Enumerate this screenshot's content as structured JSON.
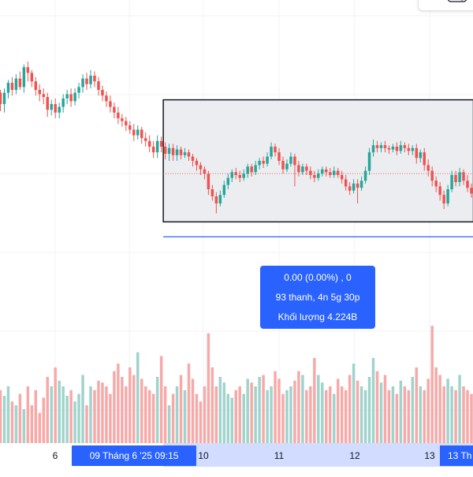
{
  "colors": {
    "up": "#26a69a",
    "down": "#ef5350",
    "up_volume": "#9fd3cc",
    "down_volume": "#f7a9a8",
    "selection_fill": "#ebedf0",
    "selection_border": "#131722",
    "range_highlight": "#2962ff",
    "axis_highlight_bg": "#d1dcff",
    "grid": "#f0f3fa",
    "price_line": "#ef5350"
  },
  "x_axis": {
    "ticks": [
      "6",
      "10",
      "11",
      "12",
      "13"
    ],
    "range_start_label": "09 Tháng 6 '25   09:15",
    "range_end_label": "13 Th"
  },
  "measure_tooltip": {
    "change": "0.00 (0.00%) , 0",
    "bars_duration": "93 thanh, 4n 5g 30p",
    "volume": "Khối lượng 4.224B"
  },
  "toolbar": {
    "icon": "toggle-icon"
  },
  "chart_data": {
    "type": "candlestick",
    "candles": [
      [
        118,
        110,
        105,
        120
      ],
      [
        110,
        118,
        104,
        121
      ],
      [
        118,
        125,
        114,
        127
      ],
      [
        125,
        120,
        116,
        129
      ],
      [
        120,
        128,
        117,
        131
      ],
      [
        128,
        122,
        120,
        133
      ],
      [
        122,
        136,
        118,
        138
      ],
      [
        136,
        132,
        126,
        140
      ],
      [
        132,
        126,
        122,
        134
      ],
      [
        126,
        120,
        116,
        129
      ],
      [
        120,
        117,
        112,
        124
      ],
      [
        117,
        115,
        110,
        121
      ],
      [
        115,
        106,
        101,
        118
      ],
      [
        106,
        110,
        102,
        113
      ],
      [
        110,
        104,
        100,
        114
      ],
      [
        104,
        108,
        100,
        111
      ],
      [
        108,
        114,
        104,
        117
      ],
      [
        114,
        117,
        110,
        120
      ],
      [
        117,
        112,
        108,
        121
      ],
      [
        112,
        118,
        109,
        121
      ],
      [
        118,
        122,
        114,
        125
      ],
      [
        122,
        128,
        118,
        131
      ],
      [
        128,
        124,
        120,
        132
      ],
      [
        124,
        130,
        121,
        134
      ],
      [
        130,
        126,
        122,
        133
      ],
      [
        126,
        120,
        116,
        129
      ],
      [
        120,
        116,
        112,
        123
      ],
      [
        116,
        112,
        108,
        119
      ],
      [
        112,
        108,
        104,
        116
      ],
      [
        108,
        104,
        100,
        111
      ],
      [
        104,
        100,
        96,
        108
      ],
      [
        100,
        98,
        94,
        103
      ],
      [
        98,
        95,
        91,
        101
      ],
      [
        95,
        92,
        89,
        98
      ],
      [
        92,
        88,
        84,
        96
      ],
      [
        88,
        92,
        85,
        95
      ],
      [
        92,
        86,
        82,
        94
      ],
      [
        86,
        84,
        80,
        90
      ],
      [
        84,
        80,
        76,
        88
      ],
      [
        80,
        76,
        72,
        84
      ],
      [
        76,
        84,
        72,
        88
      ],
      [
        84,
        80,
        76,
        87
      ],
      [
        80,
        75,
        71,
        83
      ],
      [
        75,
        79,
        70,
        82
      ],
      [
        79,
        74,
        70,
        82
      ],
      [
        74,
        78,
        70,
        81
      ],
      [
        78,
        74,
        71,
        80
      ],
      [
        74,
        76,
        72,
        79
      ],
      [
        76,
        73,
        70,
        78
      ],
      [
        73,
        70,
        66,
        75
      ],
      [
        70,
        67,
        63,
        72
      ],
      [
        67,
        64,
        60,
        69
      ],
      [
        64,
        61,
        57,
        66
      ],
      [
        61,
        50,
        46,
        63
      ],
      [
        50,
        45,
        42,
        53
      ],
      [
        45,
        40,
        33,
        48
      ],
      [
        40,
        46,
        38,
        49
      ],
      [
        46,
        53,
        44,
        56
      ],
      [
        53,
        58,
        50,
        61
      ],
      [
        58,
        62,
        55,
        64
      ],
      [
        62,
        60,
        57,
        65
      ],
      [
        60,
        58,
        55,
        63
      ],
      [
        58,
        61,
        56,
        64
      ],
      [
        61,
        66,
        58,
        68
      ],
      [
        66,
        62,
        59,
        68
      ],
      [
        62,
        67,
        60,
        70
      ],
      [
        67,
        70,
        64,
        72
      ],
      [
        70,
        68,
        65,
        73
      ],
      [
        68,
        73,
        66,
        76
      ],
      [
        73,
        80,
        71,
        83
      ],
      [
        80,
        76,
        73,
        82
      ],
      [
        76,
        70,
        67,
        79
      ],
      [
        70,
        64,
        61,
        73
      ],
      [
        64,
        68,
        62,
        71
      ],
      [
        68,
        73,
        66,
        76
      ],
      [
        73,
        67,
        52,
        75
      ],
      [
        67,
        62,
        59,
        70
      ],
      [
        62,
        66,
        60,
        68
      ],
      [
        66,
        63,
        60,
        68
      ],
      [
        63,
        60,
        57,
        66
      ],
      [
        60,
        58,
        55,
        63
      ],
      [
        58,
        61,
        56,
        64
      ],
      [
        61,
        64,
        59,
        66
      ],
      [
        64,
        62,
        59,
        66
      ],
      [
        62,
        60,
        58,
        65
      ],
      [
        60,
        63,
        58,
        66
      ],
      [
        63,
        60,
        58,
        65
      ],
      [
        60,
        57,
        54,
        63
      ],
      [
        57,
        52,
        49,
        60
      ],
      [
        52,
        49,
        46,
        55
      ],
      [
        49,
        54,
        47,
        57
      ],
      [
        54,
        51,
        40,
        57
      ],
      [
        51,
        56,
        49,
        59
      ],
      [
        56,
        63,
        54,
        66
      ],
      [
        63,
        76,
        60,
        79
      ],
      [
        76,
        81,
        73,
        85
      ],
      [
        81,
        79,
        76,
        84
      ],
      [
        79,
        81,
        76,
        83
      ],
      [
        81,
        79,
        76,
        84
      ],
      [
        79,
        78,
        75,
        81
      ],
      [
        78,
        80,
        76,
        82
      ],
      [
        80,
        77,
        74,
        83
      ],
      [
        77,
        81,
        75,
        84
      ],
      [
        81,
        79,
        76,
        83
      ],
      [
        79,
        77,
        74,
        82
      ],
      [
        77,
        79,
        74,
        81
      ],
      [
        79,
        72,
        68,
        82
      ],
      [
        72,
        76,
        69,
        78
      ],
      [
        76,
        67,
        63,
        79
      ],
      [
        67,
        63,
        59,
        71
      ],
      [
        63,
        56,
        52,
        66
      ],
      [
        56,
        52,
        48,
        59
      ],
      [
        52,
        46,
        42,
        55
      ],
      [
        46,
        40,
        36,
        49
      ],
      [
        40,
        50,
        38,
        53
      ],
      [
        50,
        60,
        48,
        63
      ],
      [
        60,
        55,
        52,
        63
      ],
      [
        55,
        62,
        52,
        65
      ],
      [
        62,
        56,
        53,
        64
      ],
      [
        56,
        51,
        48,
        60
      ],
      [
        51,
        47,
        44,
        54
      ]
    ],
    "volume": [
      0.28,
      0.25,
      0.3,
      0.22,
      0.2,
      0.26,
      0.18,
      0.3,
      0.2,
      0.28,
      0.16,
      0.24,
      0.35,
      0.3,
      0.4,
      0.33,
      0.3,
      0.25,
      0.28,
      0.22,
      0.26,
      0.36,
      0.2,
      0.3,
      0.28,
      0.33,
      0.32,
      0.3,
      0.26,
      0.38,
      0.42,
      0.35,
      0.3,
      0.4,
      0.36,
      0.48,
      0.34,
      0.3,
      0.28,
      0.26,
      0.35,
      0.46,
      0.3,
      0.2,
      0.26,
      0.3,
      0.36,
      0.28,
      0.42,
      0.34,
      0.26,
      0.22,
      0.3,
      0.58,
      0.4,
      0.3,
      0.35,
      0.32,
      0.26,
      0.24,
      0.28,
      0.3,
      0.26,
      0.34,
      0.32,
      0.3,
      0.35,
      0.36,
      0.28,
      0.3,
      0.38,
      0.34,
      0.26,
      0.28,
      0.3,
      0.33,
      0.38,
      0.36,
      0.28,
      0.3,
      0.45,
      0.36,
      0.32,
      0.28,
      0.3,
      0.26,
      0.34,
      0.3,
      0.28,
      0.36,
      0.42,
      0.33,
      0.3,
      0.28,
      0.35,
      0.45,
      0.38,
      0.32,
      0.36,
      0.28,
      0.3,
      0.26,
      0.33,
      0.3,
      0.28,
      0.35,
      0.4,
      0.3,
      0.28,
      0.34,
      0.62,
      0.4,
      0.36,
      0.3,
      0.34,
      0.3,
      0.28,
      0.36,
      0.3,
      0.28,
      0.26
    ],
    "price_range": [
      0,
      150
    ],
    "selection": {
      "start_bar": 42,
      "end_bar": 120,
      "top_price": 113,
      "bottom_price": 27
    },
    "last_price": 61,
    "grid": true
  }
}
